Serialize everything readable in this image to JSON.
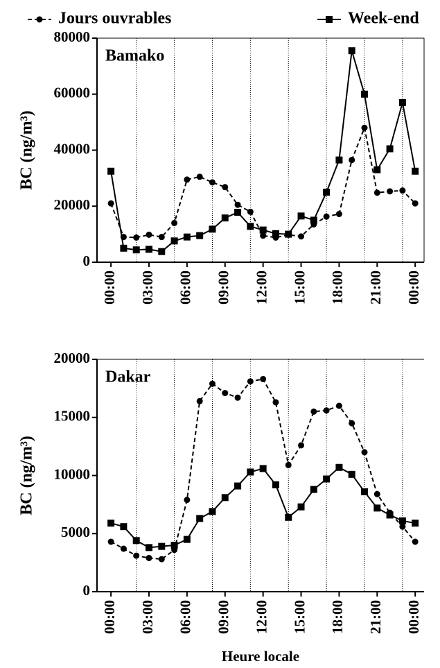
{
  "chart_data": [
    {
      "type": "line",
      "title": "Bamako",
      "ylabel": "BC (ng/m³)",
      "x": [
        0,
        1,
        2,
        3,
        4,
        5,
        6,
        7,
        8,
        9,
        10,
        11,
        12,
        13,
        14,
        15,
        16,
        17,
        18,
        19,
        20,
        21,
        22,
        23,
        24
      ],
      "series": [
        {
          "name": "Jours ouvrables",
          "color": "#000000",
          "dash": true,
          "marker": "circle",
          "values": [
            21000,
            9000,
            8800,
            9800,
            9000,
            14000,
            29500,
            30500,
            28500,
            26800,
            20500,
            18000,
            9500,
            8800,
            9800,
            9200,
            13500,
            16300,
            17200,
            36500,
            48000,
            24800,
            25300,
            25600,
            21000
          ]
        },
        {
          "name": "Week-end",
          "color": "#000000",
          "dash": false,
          "marker": "square",
          "values": [
            32500,
            5000,
            4400,
            4600,
            3800,
            7600,
            9000,
            9500,
            11800,
            15800,
            17800,
            12800,
            11500,
            10200,
            10000,
            16500,
            15000,
            25000,
            36500,
            75500,
            60000,
            33000,
            40500,
            57000,
            32500
          ]
        }
      ],
      "xlim": [
        -1.1,
        24.7
      ],
      "xticks": [
        {
          "value": 0,
          "label": "00:00"
        },
        {
          "value": 3,
          "label": "03:00"
        },
        {
          "value": 6,
          "label": "06:00"
        },
        {
          "value": 9,
          "label": "09:00"
        },
        {
          "value": 12,
          "label": "12:00"
        },
        {
          "value": 15,
          "label": "15:00"
        },
        {
          "value": 18,
          "label": "18:00"
        },
        {
          "value": 21,
          "label": "21:00"
        },
        {
          "value": 24,
          "label": "00:00"
        }
      ],
      "ylim": [
        0,
        80000
      ],
      "yticks": [
        0,
        20000,
        40000,
        60000,
        80000
      ],
      "vlines": [
        2,
        5,
        8,
        11,
        14,
        17,
        20,
        23
      ]
    },
    {
      "type": "line",
      "title": "Dakar",
      "ylabel": "BC (ng/m³)",
      "xlabel": "Heure locale",
      "x": [
        0,
        1,
        2,
        3,
        4,
        5,
        6,
        7,
        8,
        9,
        10,
        11,
        12,
        13,
        14,
        15,
        16,
        17,
        18,
        19,
        20,
        21,
        22,
        23,
        24
      ],
      "series": [
        {
          "color": "#000000",
          "dash": true,
          "marker": "circle",
          "values": [
            4300,
            3700,
            3100,
            2900,
            2800,
            3600,
            7900,
            16400,
            17900,
            17100,
            16700,
            18100,
            18300,
            16300,
            10900,
            12600,
            15500,
            15600,
            16000,
            14500,
            12000,
            8400,
            6800,
            5600,
            4300
          ]
        },
        {
          "color": "#000000",
          "dash": false,
          "marker": "square",
          "values": [
            5900,
            5600,
            4400,
            3800,
            3900,
            4000,
            4500,
            6300,
            6900,
            8100,
            9100,
            10300,
            10600,
            9200,
            6400,
            7300,
            8800,
            9700,
            10700,
            10100,
            8600,
            7200,
            6600,
            6100,
            5900
          ]
        }
      ],
      "xlim": [
        -1.1,
        24.7
      ],
      "xticks": [
        {
          "value": 0,
          "label": "00:00"
        },
        {
          "value": 3,
          "label": "03:00"
        },
        {
          "value": 6,
          "label": "06:00"
        },
        {
          "value": 9,
          "label": "09:00"
        },
        {
          "value": 12,
          "label": "12:00"
        },
        {
          "value": 15,
          "label": "15:00"
        },
        {
          "value": 18,
          "label": "18:00"
        },
        {
          "value": 21,
          "label": "21:00"
        },
        {
          "value": 24,
          "label": "00:00"
        }
      ],
      "ylim": [
        0,
        20000
      ],
      "yticks": [
        0,
        5000,
        10000,
        15000,
        20000
      ],
      "vlines": [
        2,
        5,
        8,
        11,
        14,
        17,
        20,
        23
      ]
    }
  ]
}
